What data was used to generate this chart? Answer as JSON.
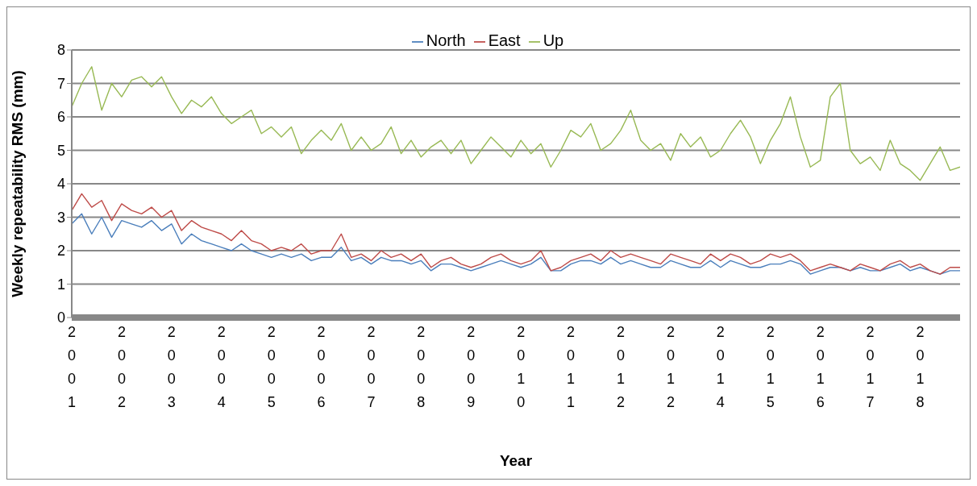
{
  "chart_data": {
    "type": "line",
    "xlabel": "Year",
    "ylabel": "Weekly repeatability RMS (mm)",
    "categories": [
      "2001",
      null,
      null,
      null,
      null,
      "2002",
      null,
      null,
      null,
      null,
      "2003",
      null,
      null,
      null,
      null,
      "2004",
      null,
      null,
      null,
      null,
      "2005",
      null,
      null,
      null,
      null,
      "2006",
      null,
      null,
      null,
      null,
      "2007",
      null,
      null,
      null,
      null,
      "2008",
      null,
      null,
      null,
      null,
      "2009",
      null,
      null,
      null,
      null,
      "2010",
      null,
      null,
      null,
      null,
      "2011",
      null,
      null,
      null,
      null,
      "2012",
      null,
      null,
      null,
      null,
      "2012",
      null,
      null,
      null,
      null,
      "2014",
      null,
      null,
      null,
      null,
      "2015",
      null,
      null,
      null,
      null,
      "2016",
      null,
      null,
      null,
      null,
      "2017",
      null,
      null,
      null,
      null,
      "2018",
      null,
      null,
      null,
      null
    ],
    "series": [
      {
        "name": "North",
        "color": "#4a7ebb",
        "values": [
          2.8,
          3.1,
          2.5,
          3.0,
          2.4,
          2.9,
          2.8,
          2.7,
          2.9,
          2.6,
          2.8,
          2.2,
          2.5,
          2.3,
          2.2,
          2.1,
          2.0,
          2.2,
          2.0,
          1.9,
          1.8,
          1.9,
          1.8,
          1.9,
          1.7,
          1.8,
          1.8,
          2.1,
          1.7,
          1.8,
          1.6,
          1.8,
          1.7,
          1.7,
          1.6,
          1.7,
          1.4,
          1.6,
          1.6,
          1.5,
          1.4,
          1.5,
          1.6,
          1.7,
          1.6,
          1.5,
          1.6,
          1.8,
          1.4,
          1.4,
          1.6,
          1.7,
          1.7,
          1.6,
          1.8,
          1.6,
          1.7,
          1.6,
          1.5,
          1.5,
          1.7,
          1.6,
          1.5,
          1.5,
          1.7,
          1.5,
          1.7,
          1.6,
          1.5,
          1.5,
          1.6,
          1.6,
          1.7,
          1.6,
          1.3,
          1.4,
          1.5,
          1.5,
          1.4,
          1.5,
          1.4,
          1.4,
          1.5,
          1.6,
          1.4,
          1.5,
          1.4,
          1.3,
          1.4,
          1.4
        ]
      },
      {
        "name": "East",
        "color": "#be4b48",
        "values": [
          3.2,
          3.7,
          3.3,
          3.5,
          2.9,
          3.4,
          3.2,
          3.1,
          3.3,
          3.0,
          3.2,
          2.6,
          2.9,
          2.7,
          2.6,
          2.5,
          2.3,
          2.6,
          2.3,
          2.2,
          2.0,
          2.1,
          2.0,
          2.2,
          1.9,
          2.0,
          2.0,
          2.5,
          1.8,
          1.9,
          1.7,
          2.0,
          1.8,
          1.9,
          1.7,
          1.9,
          1.5,
          1.7,
          1.8,
          1.6,
          1.5,
          1.6,
          1.8,
          1.9,
          1.7,
          1.6,
          1.7,
          2.0,
          1.4,
          1.5,
          1.7,
          1.8,
          1.9,
          1.7,
          2.0,
          1.8,
          1.9,
          1.8,
          1.7,
          1.6,
          1.9,
          1.8,
          1.7,
          1.6,
          1.9,
          1.7,
          1.9,
          1.8,
          1.6,
          1.7,
          1.9,
          1.8,
          1.9,
          1.7,
          1.4,
          1.5,
          1.6,
          1.5,
          1.4,
          1.6,
          1.5,
          1.4,
          1.6,
          1.7,
          1.5,
          1.6,
          1.4,
          1.3,
          1.5,
          1.5
        ]
      },
      {
        "name": "Up",
        "color": "#98b954",
        "values": [
          6.3,
          7.0,
          7.5,
          6.2,
          7.0,
          6.6,
          7.1,
          7.2,
          6.9,
          7.2,
          6.6,
          6.1,
          6.5,
          6.3,
          6.6,
          6.1,
          5.8,
          6.0,
          6.2,
          5.5,
          5.7,
          5.4,
          5.7,
          4.9,
          5.3,
          5.6,
          5.3,
          5.8,
          5.0,
          5.4,
          5.0,
          5.2,
          5.7,
          4.9,
          5.3,
          4.8,
          5.1,
          5.3,
          4.9,
          5.3,
          4.6,
          5.0,
          5.4,
          5.1,
          4.8,
          5.3,
          4.9,
          5.2,
          4.5,
          5.0,
          5.6,
          5.4,
          5.8,
          5.0,
          5.2,
          5.6,
          6.2,
          5.3,
          5.0,
          5.2,
          4.7,
          5.5,
          5.1,
          5.4,
          4.8,
          5.0,
          5.5,
          5.9,
          5.4,
          4.6,
          5.3,
          5.8,
          6.6,
          5.4,
          4.5,
          4.7,
          6.6,
          7.0,
          5.0,
          4.6,
          4.8,
          4.4,
          5.3,
          4.6,
          4.4,
          4.1,
          4.6,
          5.1,
          4.4,
          4.5
        ]
      }
    ],
    "ylim": [
      0,
      8
    ],
    "yticks": [
      0,
      1,
      2,
      3,
      4,
      5,
      6,
      7,
      8
    ],
    "grid": "y",
    "legend": "top",
    "marker": "none",
    "line_style": "solid"
  }
}
